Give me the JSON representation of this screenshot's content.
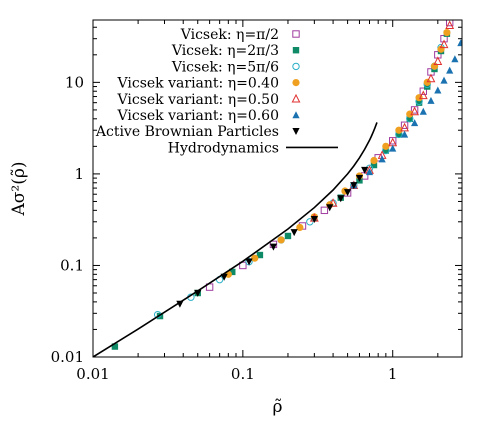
{
  "chart_data": {
    "type": "scatter",
    "title": "",
    "xlabel": "ρ̃",
    "ylabel": "Aσ²(ρ̃)",
    "xscale": "log",
    "yscale": "log",
    "xlim": [
      0.01,
      2.9
    ],
    "ylim": [
      0.01,
      48
    ],
    "x_ticks": [
      0.01,
      0.1,
      1
    ],
    "x_tick_labels": [
      "0.01",
      "0.1",
      "1"
    ],
    "y_ticks": [
      0.01,
      0.1,
      1,
      10
    ],
    "y_tick_labels": [
      "0.01",
      "0.1",
      "1",
      "10"
    ],
    "grid": false,
    "legend_position": "top-right",
    "series": [
      {
        "name": "Vicsek: η=π/2",
        "marker": "square-open",
        "color": "#a03ca0",
        "x": [
          0.06,
          0.1,
          0.16,
          0.25,
          0.35,
          0.5,
          0.65,
          0.8,
          1.0,
          1.2,
          1.4,
          1.6,
          1.8,
          2.0,
          2.2,
          2.4
        ],
        "y": [
          0.058,
          0.1,
          0.17,
          0.27,
          0.4,
          0.62,
          0.95,
          1.5,
          2.3,
          3.4,
          5.0,
          8.0,
          13,
          20,
          30,
          45
        ]
      },
      {
        "name": "Vicsek: η=2π/3",
        "marker": "square-filled",
        "color": "#0f8a66",
        "x": [
          0.014,
          0.028,
          0.05,
          0.085,
          0.13,
          0.2,
          0.3,
          0.45,
          0.6,
          0.75,
          0.9,
          1.1,
          1.3,
          1.5,
          1.7,
          1.9,
          2.1,
          2.3
        ],
        "y": [
          0.013,
          0.028,
          0.05,
          0.085,
          0.13,
          0.21,
          0.33,
          0.55,
          0.85,
          1.25,
          1.8,
          2.7,
          4.0,
          6.0,
          9.0,
          14,
          22,
          34
        ]
      },
      {
        "name": "Vicsek: η=5π/6",
        "marker": "circle-open",
        "color": "#2ab0c8",
        "x": [
          0.027,
          0.045,
          0.07,
          0.11,
          0.18,
          0.28,
          0.4,
          0.55,
          0.7,
          0.9,
          1.1,
          1.3,
          1.5,
          1.7,
          1.9,
          2.1
        ],
        "y": [
          0.029,
          0.045,
          0.07,
          0.11,
          0.19,
          0.3,
          0.48,
          0.75,
          1.15,
          1.8,
          2.7,
          4.0,
          6.2,
          9.5,
          15,
          24
        ]
      },
      {
        "name": "Vicsek variant: η=0.40",
        "marker": "circle-filled",
        "color": "#f0a020",
        "x": [
          0.08,
          0.12,
          0.18,
          0.24,
          0.3,
          0.38,
          0.48,
          0.6,
          0.75,
          0.9,
          1.1,
          1.3,
          1.5,
          1.7,
          1.9,
          2.1,
          2.3
        ],
        "y": [
          0.08,
          0.12,
          0.19,
          0.26,
          0.34,
          0.46,
          0.65,
          0.95,
          1.4,
          2.0,
          3.0,
          4.5,
          6.8,
          10,
          15,
          23,
          35
        ]
      },
      {
        "name": "Vicsek variant: η=0.50",
        "marker": "triangle-open",
        "color": "#e03030",
        "x": [
          0.3,
          0.4,
          0.55,
          0.7,
          0.85,
          1.0,
          1.2,
          1.4,
          1.6,
          1.8,
          2.0,
          2.2,
          2.4
        ],
        "y": [
          0.33,
          0.48,
          0.75,
          1.1,
          1.6,
          2.2,
          3.2,
          4.8,
          7.2,
          11,
          17,
          26,
          42
        ]
      },
      {
        "name": "Vicsek variant: η=0.60",
        "marker": "triangle-filled",
        "color": "#1a72b0",
        "x": [
          0.55,
          0.7,
          0.85,
          1.0,
          1.2,
          1.4,
          1.6,
          1.8,
          2.0,
          2.2,
          2.4,
          2.6,
          2.85
        ],
        "y": [
          0.75,
          1.05,
          1.45,
          1.9,
          2.7,
          3.6,
          4.8,
          6.3,
          8.2,
          10.5,
          13.5,
          18,
          27
        ]
      },
      {
        "name": "Active Brownian Particles",
        "marker": "triangle-down-filled",
        "color": "#000000",
        "x": [
          0.038,
          0.05,
          0.075,
          0.11,
          0.16,
          0.22,
          0.3,
          0.38,
          0.45,
          0.5,
          0.55,
          0.6,
          0.65
        ],
        "y": [
          0.038,
          0.05,
          0.075,
          0.11,
          0.16,
          0.23,
          0.32,
          0.43,
          0.54,
          0.63,
          0.75,
          0.9,
          1.1
        ]
      },
      {
        "name": "Hydrodynamics",
        "marker": "line",
        "color": "#000000",
        "x": [
          0.01,
          0.02,
          0.05,
          0.1,
          0.2,
          0.3,
          0.4,
          0.5,
          0.55,
          0.6,
          0.65,
          0.7,
          0.72,
          0.74,
          0.76,
          0.77,
          0.78,
          0.785
        ],
        "y": [
          0.01,
          0.0202,
          0.0527,
          0.111,
          0.25,
          0.429,
          0.667,
          1.0,
          1.22,
          1.5,
          1.86,
          2.33,
          2.57,
          2.85,
          3.17,
          3.35,
          3.55,
          3.65
        ]
      }
    ]
  }
}
